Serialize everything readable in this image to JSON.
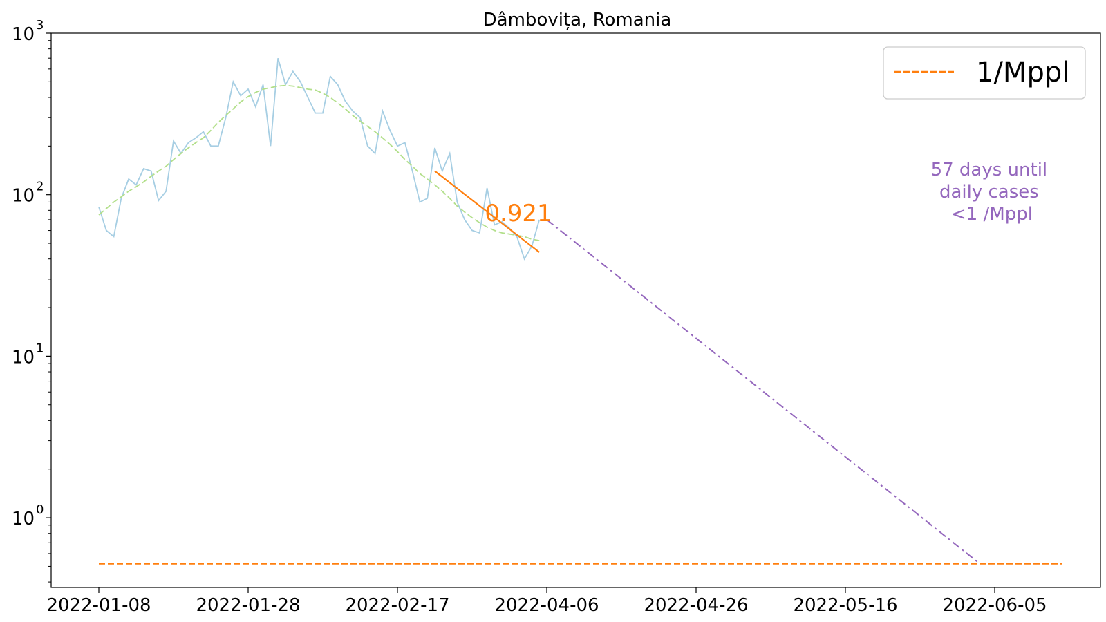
{
  "chart_data": {
    "type": "line",
    "title": "Dâmbovița, Romania",
    "xlabel": "",
    "ylabel": "",
    "yscale": "log",
    "ylim": [
      0.37,
      1000
    ],
    "y_ticks": [
      {
        "value": 1,
        "base": "10",
        "exp": "0"
      },
      {
        "value": 10,
        "base": "10",
        "exp": "1"
      },
      {
        "value": 100,
        "base": "10",
        "exp": "2"
      },
      {
        "value": 1000,
        "base": "10",
        "exp": "3"
      }
    ],
    "x_tick_labels": [
      "2022-01-08",
      "2022-01-28",
      "2022-02-17",
      "2022-04-06",
      "2022-04-26",
      "2022-05-16",
      "2022-06-05"
    ],
    "grid": false,
    "legend": {
      "placement": "top-right",
      "entries": [
        {
          "label": "1/Mppl",
          "color": "#ff7f0e",
          "style": "dashed"
        }
      ]
    },
    "series": [
      {
        "role": "daily",
        "color": "#a6cee3",
        "style": "solid",
        "x": [
          0,
          1,
          2,
          3,
          4,
          5,
          6,
          7,
          8,
          9,
          10,
          11,
          12,
          13,
          14,
          15,
          16,
          17,
          18,
          19,
          20,
          21,
          22,
          23,
          24,
          25,
          26,
          27,
          28,
          29,
          30,
          31,
          32,
          33,
          34,
          35,
          36,
          37,
          38,
          39,
          40,
          41,
          42,
          43,
          44,
          45,
          46,
          47,
          48,
          49,
          50,
          51,
          52,
          53,
          54,
          55,
          56,
          57,
          58,
          59
        ],
        "values": [
          84,
          60,
          55,
          95,
          125,
          115,
          145,
          140,
          92,
          105,
          215,
          180,
          210,
          225,
          245,
          200,
          200,
          300,
          500,
          410,
          450,
          350,
          480,
          200,
          700,
          480,
          580,
          500,
          400,
          320,
          320,
          540,
          480,
          380,
          330,
          300,
          200,
          180,
          330,
          250,
          200,
          210,
          140,
          90,
          95,
          195,
          140,
          180,
          90,
          70,
          60,
          58,
          110,
          65,
          68,
          62,
          55,
          40,
          48,
          70
        ]
      },
      {
        "role": "smoothed",
        "color": "#b2df8a",
        "style": "dashed",
        "x": [
          0,
          1,
          2,
          3,
          4,
          5,
          6,
          7,
          8,
          9,
          10,
          11,
          12,
          13,
          14,
          15,
          16,
          17,
          18,
          19,
          20,
          21,
          22,
          23,
          24,
          25,
          26,
          27,
          28,
          29,
          30,
          31,
          32,
          33,
          34,
          35,
          36,
          37,
          38,
          39,
          40,
          41,
          42,
          43,
          44,
          45,
          46,
          47,
          48,
          49,
          50,
          51,
          52,
          53,
          54,
          55,
          56,
          57,
          58,
          59
        ],
        "values": [
          75,
          82,
          90,
          97,
          105,
          112,
          120,
          130,
          140,
          150,
          165,
          180,
          195,
          210,
          225,
          250,
          280,
          310,
          340,
          375,
          405,
          430,
          450,
          460,
          470,
          475,
          470,
          460,
          450,
          445,
          425,
          400,
          370,
          340,
          310,
          285,
          265,
          245,
          225,
          205,
          185,
          165,
          150,
          135,
          125,
          115,
          105,
          95,
          85,
          78,
          72,
          67,
          63,
          60,
          58,
          57,
          56,
          55,
          53,
          52
        ]
      },
      {
        "role": "fit",
        "label": "0.921",
        "color": "#ff7f0e",
        "style": "solid",
        "x": [
          45,
          59
        ],
        "values": [
          140,
          44
        ]
      },
      {
        "role": "projection",
        "color": "#9467bd",
        "style": "dashdot",
        "x": [
          60,
          118
        ],
        "values": [
          70,
          0.52
        ]
      },
      {
        "role": "threshold",
        "label": "1/Mppl",
        "color": "#ff7f0e",
        "style": "dashed",
        "x": [
          0,
          129
        ],
        "values": [
          0.52,
          0.52
        ]
      }
    ],
    "annotations": [
      {
        "text_lines": [
          "57 days until",
          "daily cases",
          "<1 /Mppl"
        ],
        "color": "#9467bd"
      },
      {
        "text": "0.921",
        "color": "#ff7f0e"
      }
    ]
  }
}
